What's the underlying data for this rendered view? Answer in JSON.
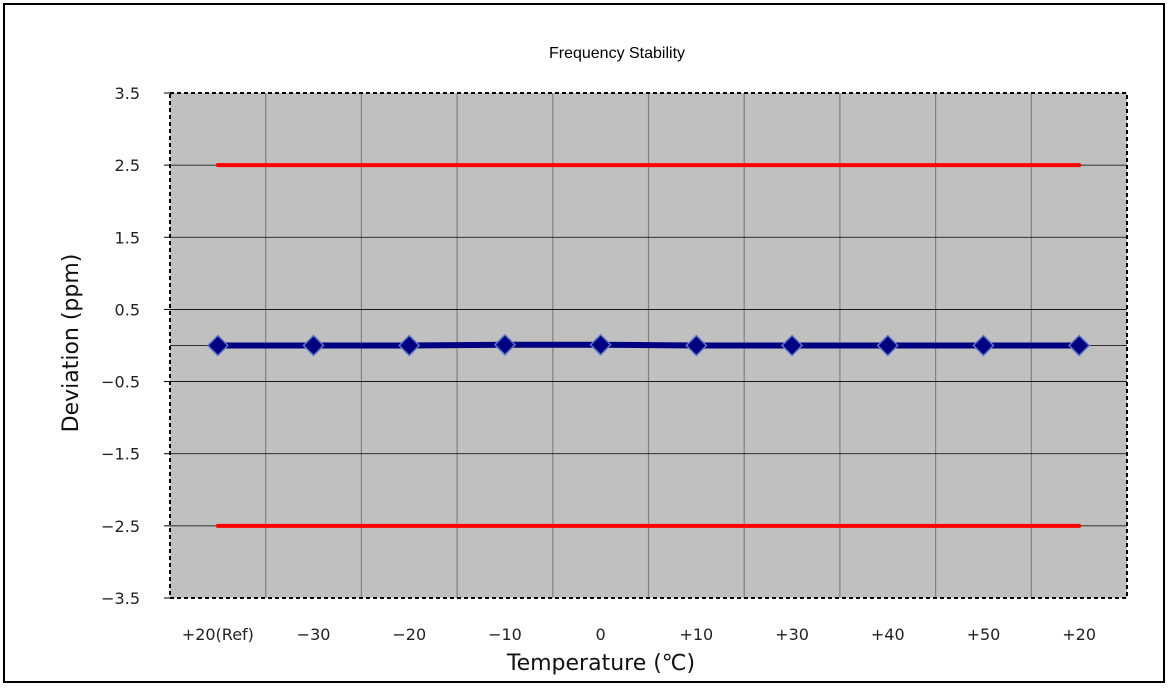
{
  "chart_data": {
    "type": "line",
    "title": "Frequency Stability",
    "xlabel": "Temperature (℃)",
    "ylabel": "Deviation (ppm)",
    "categories": [
      "+20(Ref)",
      "−30",
      "−20",
      "−10",
      "0",
      "+10",
      "+30",
      "+40",
      "+50",
      "+20"
    ],
    "y_ticks": [
      "3.5",
      "2.5",
      "1.5",
      "0.5",
      "−0.5",
      "−1.5",
      "−2.5",
      "−3.5"
    ],
    "y_tick_values": [
      3.5,
      2.5,
      1.5,
      0.5,
      -0.5,
      -1.5,
      -2.5,
      -3.5
    ],
    "ylim": [
      -3.5,
      3.5
    ],
    "grid": true,
    "series": [
      {
        "values": [
          0.0,
          0.0,
          0.0,
          0.01,
          0.01,
          0.0,
          0.0,
          0.0,
          0.0,
          0.0
        ],
        "color": "#000080",
        "marker": "diamond"
      },
      {
        "values": [
          2.5,
          2.5,
          2.5,
          2.5,
          2.5,
          2.5,
          2.5,
          2.5,
          2.5,
          2.5
        ],
        "color": "#ff0000"
      },
      {
        "values": [
          -2.5,
          -2.5,
          -2.5,
          -2.5,
          -2.5,
          -2.5,
          -2.5,
          -2.5,
          -2.5,
          -2.5
        ],
        "color": "#ff0000"
      }
    ],
    "colors": {
      "plot_bg": "#c0c0c0",
      "grid": "#808080"
    }
  }
}
